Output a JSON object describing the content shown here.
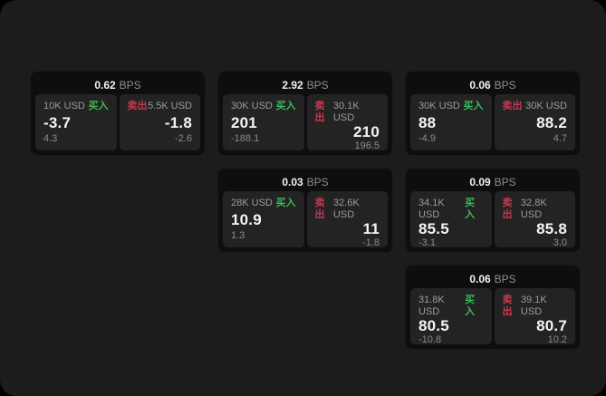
{
  "window": {
    "background": "#000000",
    "surface": "#1c1c1c"
  },
  "labels": {
    "bps_unit": "BPS",
    "buy": "买入",
    "sell": "卖出"
  },
  "colors": {
    "buy": "#3cba5c",
    "sell": "#c43a52",
    "card_background": "#0e0e0e",
    "panel_background": "#232323"
  },
  "cards": [
    {
      "row": 1,
      "col": 1,
      "bps": "0.62",
      "buy": {
        "size": "10K USD",
        "price": "-3.7",
        "change": "4.3"
      },
      "sell": {
        "size": "5.5K USD",
        "price": "-1.8",
        "change": "-2.6"
      }
    },
    {
      "row": 1,
      "col": 2,
      "bps": "2.92",
      "buy": {
        "size": "30K USD",
        "price": "201",
        "change": "-188.1"
      },
      "sell": {
        "size": "30.1K USD",
        "price": "210",
        "change": "196.5"
      }
    },
    {
      "row": 1,
      "col": 3,
      "bps": "0.06",
      "buy": {
        "size": "30K USD",
        "price": "88",
        "change": "-4.9"
      },
      "sell": {
        "size": "30K USD",
        "price": "88.2",
        "change": "4.7"
      }
    },
    {
      "row": 2,
      "col": 2,
      "bps": "0.03",
      "buy": {
        "size": "28K USD",
        "price": "10.9",
        "change": "1.3"
      },
      "sell": {
        "size": "32.6K USD",
        "price": "11",
        "change": "-1.8"
      }
    },
    {
      "row": 2,
      "col": 3,
      "bps": "0.09",
      "buy": {
        "size": "34.1K USD",
        "price": "85.5",
        "change": "-3.1"
      },
      "sell": {
        "size": "32.8K USD",
        "price": "85.8",
        "change": "3.0"
      }
    },
    {
      "row": 3,
      "col": 3,
      "bps": "0.06",
      "buy": {
        "size": "31.8K USD",
        "price": "80.5",
        "change": "-10.8"
      },
      "sell": {
        "size": "39.1K USD",
        "price": "80.7",
        "change": "10.2"
      }
    }
  ]
}
